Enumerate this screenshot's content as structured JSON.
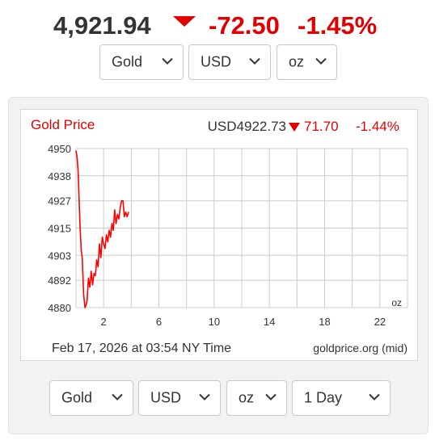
{
  "header": {
    "price": "4,921.94",
    "change": "-72.50",
    "change_pct": "-1.45%"
  },
  "top_selectors": {
    "metal": "Gold",
    "currency": "USD",
    "unit": "oz"
  },
  "bottom_selectors": {
    "metal": "Gold",
    "currency": "USD",
    "unit": "oz",
    "range": "1 Day"
  },
  "colors": {
    "down_red": "#e10000",
    "series_line": "#ff0000",
    "grid": "#cccccc",
    "text_dark": "#333333"
  },
  "chart_data": {
    "type": "line",
    "title": "Gold Price",
    "quote_label": "USD4922.73",
    "quote_change": "71.70",
    "quote_change_pct": "-1.44%",
    "direction_icon": "down-triangle-icon",
    "unit_label": "oz",
    "footer_time": "Feb 17, 2026 at 03:54 NY Time",
    "footer_source": "goldprice.org (mid)",
    "xlim": [
      0,
      24
    ],
    "ylim": [
      4880,
      4950
    ],
    "x_ticks": [
      2,
      6,
      10,
      14,
      18,
      22
    ],
    "x_tick_labels": [
      "2",
      "6",
      "10",
      "14",
      "18",
      "22"
    ],
    "x_grid": [
      0,
      2,
      4,
      6,
      8,
      10,
      12,
      14,
      16,
      18,
      20,
      22,
      24
    ],
    "y_ticks": [
      4950,
      4938,
      4927,
      4915,
      4903,
      4892,
      4880
    ],
    "y_tick_labels": [
      "4950",
      "4938",
      "4927",
      "4915",
      "4903",
      "4892",
      "4880"
    ],
    "grid": true,
    "series": [
      {
        "x": [
          0.0,
          0.08,
          0.15,
          0.22,
          0.3,
          0.38,
          0.45,
          0.55,
          0.65,
          0.72,
          0.8,
          0.9,
          1.0,
          1.1,
          1.2,
          1.3,
          1.4,
          1.5,
          1.6,
          1.7,
          1.8,
          1.9,
          2.0,
          2.1,
          2.2,
          2.3,
          2.4,
          2.5,
          2.6,
          2.7,
          2.8,
          2.9,
          3.0,
          3.1,
          3.2,
          3.3,
          3.4,
          3.5,
          3.6,
          3.7,
          3.8
        ],
        "y": [
          4949,
          4946,
          4940,
          4928,
          4915,
          4905,
          4902,
          4886,
          4880,
          4881,
          4883,
          4893,
          4889,
          4896,
          4890,
          4895,
          4894,
          4901,
          4898,
          4908,
          4902,
          4911,
          4908,
          4906,
          4912,
          4909,
          4914,
          4911,
          4917,
          4914,
          4923,
          4917,
          4921,
          4919,
          4924,
          4927,
          4927,
          4920,
          4922,
          4920,
          4922
        ]
      }
    ]
  }
}
